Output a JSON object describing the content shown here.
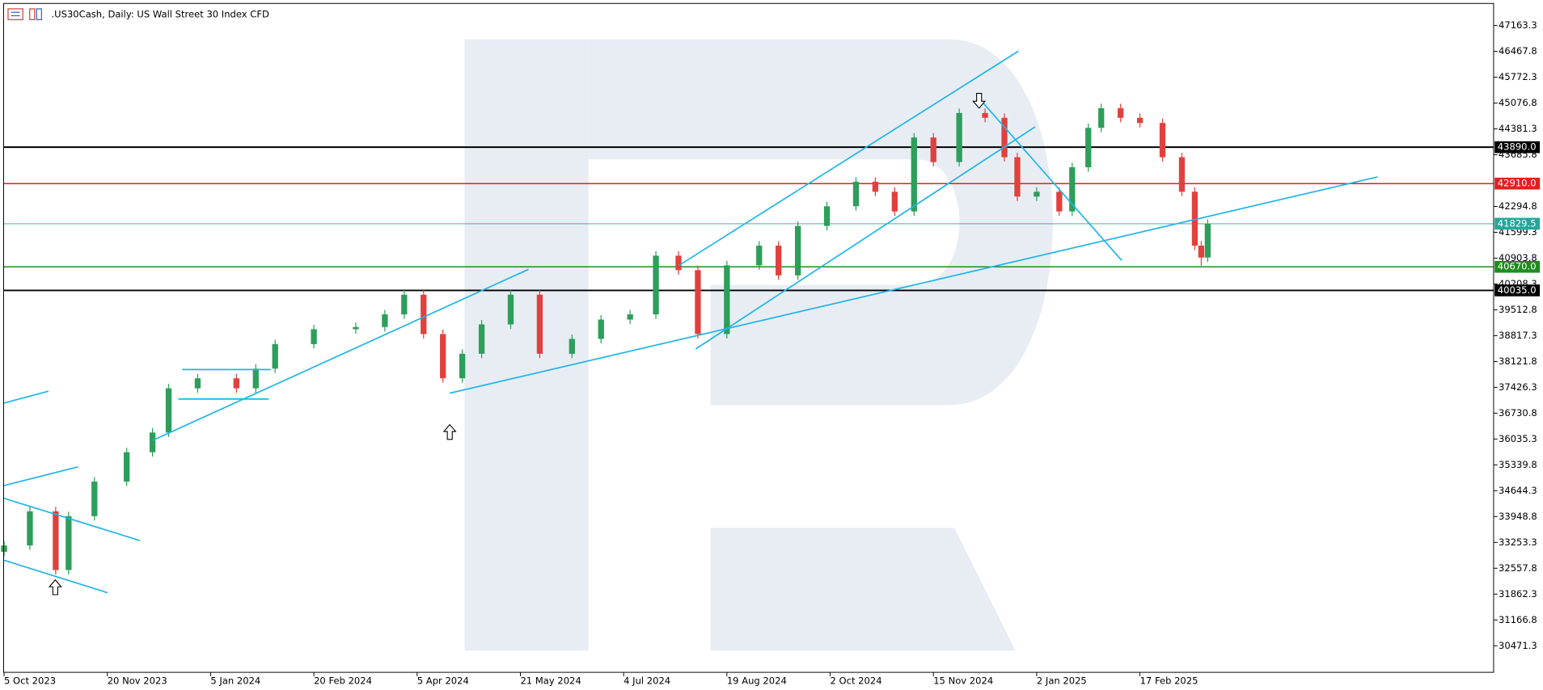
{
  "chart_data": {
    "type": "candlestick",
    "title": ".US30Cash, Daily:  US Wall Street 30 Index CFD",
    "up_color": "#2e9e5b",
    "down_color": "#e0413f",
    "xlim": [
      -1.2,
      461.6
    ],
    "ylim": [
      29757,
      47851
    ],
    "grid": false,
    "xticks": [
      {
        "value": 0,
        "label": "5 Oct 2023"
      },
      {
        "value": 32,
        "label": "20 Nov 2023"
      },
      {
        "value": 64,
        "label": "5 Jan 2024"
      },
      {
        "value": 96,
        "label": "20 Feb 2024"
      },
      {
        "value": 128,
        "label": "5 Apr 2024"
      },
      {
        "value": 160,
        "label": "21 May 2024"
      },
      {
        "value": 192,
        "label": "4 Jul 2024"
      },
      {
        "value": 224,
        "label": "19 Aug 2024"
      },
      {
        "value": 256,
        "label": "2 Oct 2024"
      },
      {
        "value": 288,
        "label": "15 Nov 2024"
      },
      {
        "value": 320,
        "label": "2 Jan 2025"
      },
      {
        "value": 352,
        "label": "17 Feb 2025"
      }
    ],
    "yticks": [
      47163.3,
      46467.8,
      45772.3,
      45076.8,
      44381.3,
      43685.8,
      42294.8,
      41599.3,
      40903.8,
      40208.3,
      39512.8,
      38817.3,
      38121.8,
      37426.3,
      36730.8,
      36035.3,
      35339.8,
      34644.3,
      33948.8,
      33253.3,
      32557.8,
      31862.3,
      31166.8,
      30471.3
    ],
    "levels": [
      {
        "value": 43890,
        "label": "43890.0",
        "color": "#000000"
      },
      {
        "value": 42910,
        "label": "42910.0",
        "color": "#e41e1e"
      },
      {
        "value": 41829.5,
        "label": "41829.5",
        "color": "#26a69a"
      },
      {
        "value": 40670,
        "label": "40670.0",
        "color": "#1e8c1e"
      },
      {
        "value": 40035,
        "label": "40035.0",
        "color": "#000000"
      }
    ],
    "candles": {
      "x": [
        0,
        8,
        16,
        20,
        28,
        38,
        46,
        51,
        60,
        72,
        78,
        84,
        96,
        109,
        118,
        124,
        130,
        136,
        142,
        148,
        157,
        166,
        176,
        185,
        194,
        202,
        209,
        215,
        224,
        234,
        240,
        246,
        255,
        264,
        270,
        276,
        282,
        288,
        296,
        304,
        310,
        314,
        320,
        327,
        331,
        336,
        340,
        346,
        352,
        359,
        365,
        369,
        371,
        373
      ],
      "open": [
        33000,
        33170,
        34090,
        32510,
        33960,
        34890,
        35680,
        36210,
        37400,
        37670,
        37400,
        37930,
        38590,
        38990,
        39050,
        39390,
        39920,
        38860,
        37670,
        38330,
        39120,
        39920,
        38330,
        38730,
        39250,
        39390,
        40970,
        40580,
        38860,
        40710,
        41240,
        40440,
        41770,
        42300,
        42960,
        42690,
        42160,
        44150,
        43490,
        44810,
        44680,
        43620,
        42560,
        42690,
        42160,
        43350,
        44410,
        44940,
        44680,
        44540,
        43620,
        42690,
        41240,
        40920
      ],
      "high": [
        33290,
        34210,
        34210,
        34080,
        35010,
        35800,
        36330,
        37520,
        37790,
        37790,
        38050,
        38710,
        39110,
        39170,
        39510,
        40040,
        40040,
        38980,
        38450,
        39240,
        40040,
        40040,
        38850,
        39370,
        39510,
        41090,
        41090,
        40700,
        40830,
        41360,
        41360,
        41890,
        42420,
        43080,
        43080,
        42810,
        44270,
        44270,
        44930,
        44930,
        44800,
        43740,
        42810,
        42810,
        43470,
        44530,
        45060,
        45060,
        44800,
        44660,
        43740,
        42810,
        41360,
        41950
      ],
      "low": [
        32880,
        33050,
        32390,
        32390,
        33840,
        34770,
        35560,
        36090,
        37280,
        37280,
        37280,
        37810,
        38470,
        38870,
        38930,
        39270,
        38740,
        37550,
        37550,
        38210,
        39000,
        38210,
        38210,
        38610,
        39130,
        39270,
        40460,
        38740,
        38740,
        40590,
        40320,
        40320,
        41650,
        42180,
        42570,
        42040,
        42040,
        43370,
        43370,
        44560,
        43500,
        42440,
        42440,
        42040,
        42040,
        43230,
        44290,
        44560,
        44420,
        43500,
        42570,
        41120,
        40700,
        40800
      ],
      "close": [
        33170,
        34090,
        32510,
        33960,
        34890,
        35680,
        36210,
        37400,
        37670,
        37400,
        37930,
        38590,
        38990,
        39050,
        39390,
        39920,
        38860,
        37670,
        38330,
        39120,
        39920,
        38330,
        38730,
        39250,
        39390,
        40970,
        40580,
        38860,
        40710,
        41240,
        40440,
        41770,
        42300,
        42960,
        42690,
        42160,
        44150,
        43490,
        44810,
        44680,
        43620,
        42560,
        42690,
        42160,
        43350,
        44410,
        44940,
        44680,
        44540,
        43620,
        42690,
        41240,
        40920,
        41830
      ]
    }
  }
}
